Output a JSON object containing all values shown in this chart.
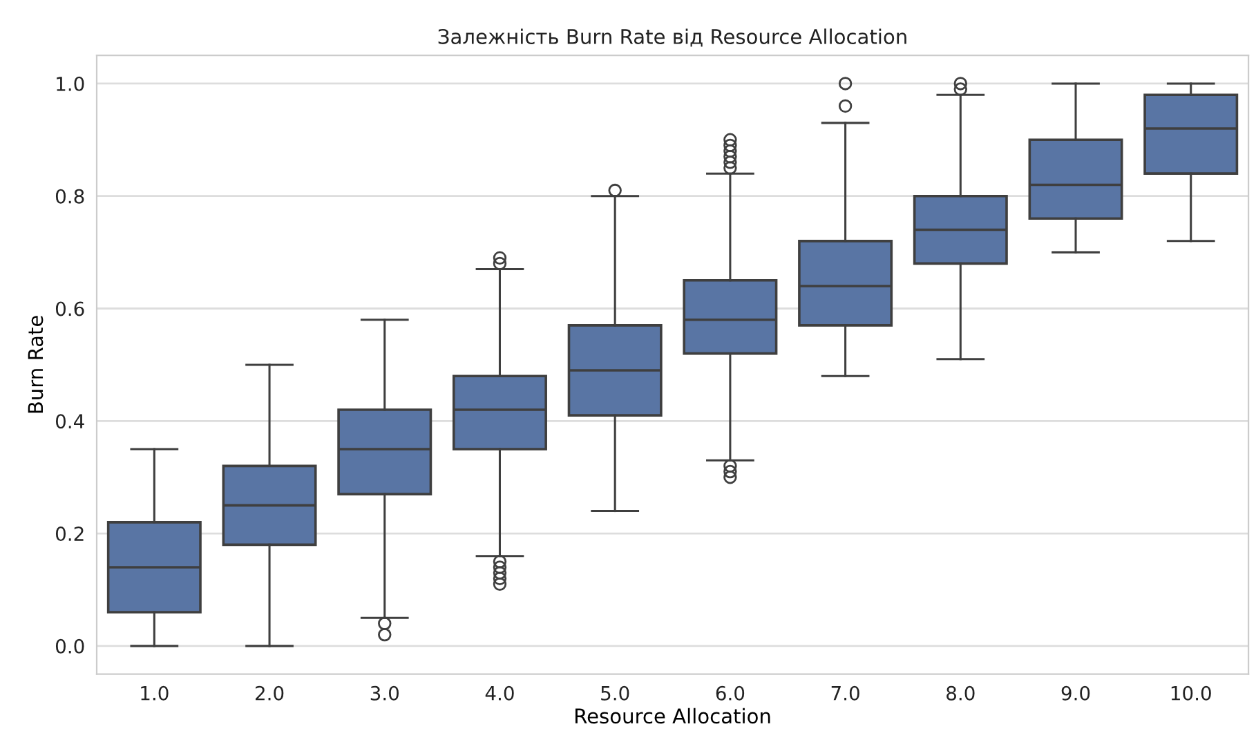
{
  "chart_data": {
    "type": "box",
    "title": "Залежність Burn Rate від Resource Allocation",
    "xlabel": "Resource Allocation",
    "ylabel": "Burn Rate",
    "categories": [
      "1.0",
      "2.0",
      "3.0",
      "4.0",
      "5.0",
      "6.0",
      "7.0",
      "8.0",
      "9.0",
      "10.0"
    ],
    "series": [
      {
        "color": "#5975a4",
        "boxes": [
          {
            "low": 0.0,
            "q1": 0.06,
            "median": 0.14,
            "q3": 0.22,
            "high": 0.35
          },
          {
            "low": 0.0,
            "q1": 0.18,
            "median": 0.25,
            "q3": 0.32,
            "high": 0.5
          },
          {
            "low": 0.05,
            "q1": 0.27,
            "median": 0.35,
            "q3": 0.42,
            "high": 0.58,
            "outliers": [
              0.04,
              0.02
            ]
          },
          {
            "low": 0.16,
            "q1": 0.35,
            "median": 0.42,
            "q3": 0.48,
            "high": 0.67,
            "outliers": [
              0.68,
              0.69,
              0.15,
              0.14,
              0.13,
              0.12,
              0.11
            ]
          },
          {
            "low": 0.24,
            "q1": 0.41,
            "median": 0.49,
            "q3": 0.57,
            "high": 0.8,
            "outliers": [
              0.81
            ]
          },
          {
            "low": 0.33,
            "q1": 0.52,
            "median": 0.58,
            "q3": 0.65,
            "high": 0.84,
            "outliers": [
              0.85,
              0.86,
              0.87,
              0.88,
              0.89,
              0.9,
              0.32,
              0.31,
              0.3
            ]
          },
          {
            "low": 0.48,
            "q1": 0.57,
            "median": 0.64,
            "q3": 0.72,
            "high": 0.93,
            "outliers": [
              0.96,
              1.0
            ]
          },
          {
            "low": 0.51,
            "q1": 0.68,
            "median": 0.74,
            "q3": 0.8,
            "high": 0.98,
            "outliers": [
              0.99,
              1.0
            ]
          },
          {
            "low": 0.7,
            "q1": 0.76,
            "median": 0.82,
            "q3": 0.9,
            "high": 1.0
          },
          {
            "low": 0.72,
            "q1": 0.84,
            "median": 0.92,
            "q3": 0.98,
            "high": 1.0
          }
        ]
      }
    ],
    "ylim": [
      -0.05,
      1.05
    ],
    "yticks": [
      {
        "value": 0.0,
        "label": "0.0"
      },
      {
        "value": 0.2,
        "label": "0.2"
      },
      {
        "value": 0.4,
        "label": "0.4"
      },
      {
        "value": 0.6,
        "label": "0.6"
      },
      {
        "value": 0.8,
        "label": "0.8"
      },
      {
        "value": 1.0,
        "label": "1.0"
      }
    ],
    "grid": "y"
  }
}
